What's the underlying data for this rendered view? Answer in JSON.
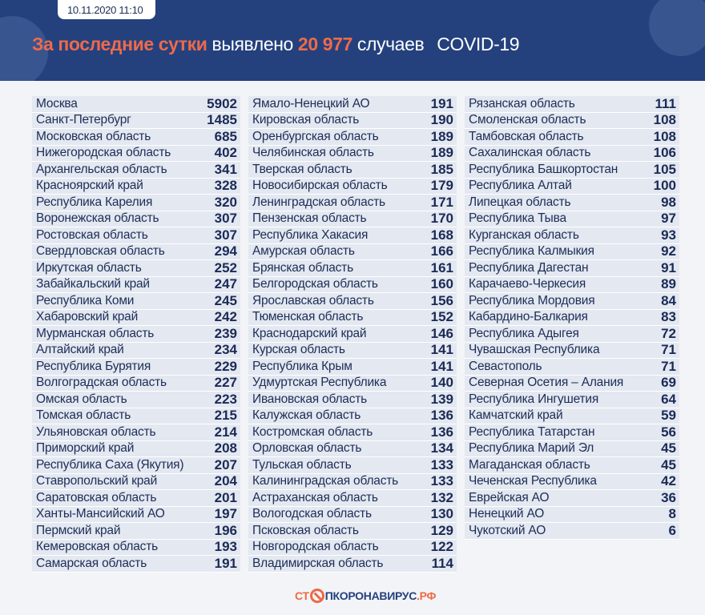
{
  "header": {
    "date": "10.11.2020 11:10",
    "title_highlight": "За последние сутки",
    "title_mid": "выявлено",
    "count": "20 977",
    "title_end": "случаев",
    "disease": "COVID-19"
  },
  "colors": {
    "header_bg": "#24417e",
    "accent": "#ee6a4a",
    "row_bg": "#e3e8f1"
  },
  "columns": [
    [
      [
        "Москва",
        "5902"
      ],
      [
        "Санкт-Петербург",
        "1485"
      ],
      [
        "Московская область",
        "685"
      ],
      [
        "Нижегородская область",
        "402"
      ],
      [
        "Архангельская область",
        "341"
      ],
      [
        "Красноярский край",
        "328"
      ],
      [
        "Республика Карелия",
        "320"
      ],
      [
        "Воронежская область",
        "307"
      ],
      [
        "Ростовская область",
        "307"
      ],
      [
        "Свердловская область",
        "294"
      ],
      [
        "Иркутская область",
        "252"
      ],
      [
        "Забайкальский край",
        "247"
      ],
      [
        "Республика Коми",
        "245"
      ],
      [
        "Хабаровский край",
        "242"
      ],
      [
        "Мурманская область",
        "239"
      ],
      [
        "Алтайский край",
        "234"
      ],
      [
        "Республика Бурятия",
        "229"
      ],
      [
        "Волгоградская область",
        "227"
      ],
      [
        "Омская область",
        "223"
      ],
      [
        "Томская область",
        "215"
      ],
      [
        "Ульяновская область",
        "214"
      ],
      [
        "Приморский край",
        "208"
      ],
      [
        "Республика Саха (Якутия)",
        "207"
      ],
      [
        "Ставропольский край",
        "204"
      ],
      [
        "Саратовская область",
        "201"
      ],
      [
        "Ханты-Мансийский АО",
        "197"
      ],
      [
        "Пермский край",
        "196"
      ],
      [
        "Кемеровская область",
        "193"
      ],
      [
        "Самарская область",
        "191"
      ]
    ],
    [
      [
        "Ямало-Ненецкий АО",
        "191"
      ],
      [
        "Кировская область",
        "190"
      ],
      [
        "Оренбургская область",
        "189"
      ],
      [
        "Челябинская область",
        "189"
      ],
      [
        "Тверская область",
        "185"
      ],
      [
        "Новосибирская область",
        "179"
      ],
      [
        "Ленинградская область",
        "171"
      ],
      [
        "Пензенская область",
        "170"
      ],
      [
        "Республика Хакасия",
        "168"
      ],
      [
        "Амурская область",
        "166"
      ],
      [
        "Брянская область",
        "161"
      ],
      [
        "Белгородская область",
        "160"
      ],
      [
        "Ярославская область",
        "156"
      ],
      [
        "Тюменская область",
        "152"
      ],
      [
        "Краснодарский край",
        "146"
      ],
      [
        "Курская область",
        "141"
      ],
      [
        "Республика Крым",
        "141"
      ],
      [
        "Удмуртская Республика",
        "140"
      ],
      [
        "Ивановская область",
        "139"
      ],
      [
        "Калужская область",
        "136"
      ],
      [
        "Костромская область",
        "136"
      ],
      [
        "Орловская область",
        "134"
      ],
      [
        "Тульская область",
        "133"
      ],
      [
        "Калининградская область",
        "133"
      ],
      [
        "Астраханская область",
        "132"
      ],
      [
        "Вологодская область",
        "130"
      ],
      [
        "Псковская область",
        "129"
      ],
      [
        "Новгородская область",
        "122"
      ],
      [
        "Владимирская область",
        "114"
      ]
    ],
    [
      [
        "Рязанская область",
        "111"
      ],
      [
        "Смоленская область",
        "108"
      ],
      [
        "Тамбовская область",
        "108"
      ],
      [
        "Сахалинская область",
        "106"
      ],
      [
        "Республика Башкортостан",
        "105"
      ],
      [
        "Республика Алтай",
        "100"
      ],
      [
        "Липецкая область",
        "98"
      ],
      [
        "Республика Тыва",
        "97"
      ],
      [
        "Курганская область",
        "93"
      ],
      [
        "Республика Калмыкия",
        "92"
      ],
      [
        "Республика Дагестан",
        "91"
      ],
      [
        "Карачаево-Черкесия",
        "89"
      ],
      [
        "Республика Мордовия",
        "84"
      ],
      [
        "Кабардино-Балкария",
        "83"
      ],
      [
        "Республика Адыгея",
        "72"
      ],
      [
        "Чувашская Республика",
        "71"
      ],
      [
        "Севастополь",
        "71"
      ],
      [
        "Северная Осетия – Алания",
        "69"
      ],
      [
        "Республика Ингушетия",
        "64"
      ],
      [
        "Камчатский край",
        "59"
      ],
      [
        "Республика Татарстан",
        "56"
      ],
      [
        "Республика Марий Эл",
        "45"
      ],
      [
        "Магаданская область",
        "45"
      ],
      [
        "Чеченская Республика",
        "42"
      ],
      [
        "Еврейская АО",
        "36"
      ],
      [
        "Ненецкий АО",
        "8"
      ],
      [
        "Чукотский АО",
        "6"
      ]
    ]
  ],
  "footer": {
    "logo_left": "СТ",
    "logo_right": "ПКОРОНАВИРУС",
    "logo_tld": ".РФ"
  }
}
